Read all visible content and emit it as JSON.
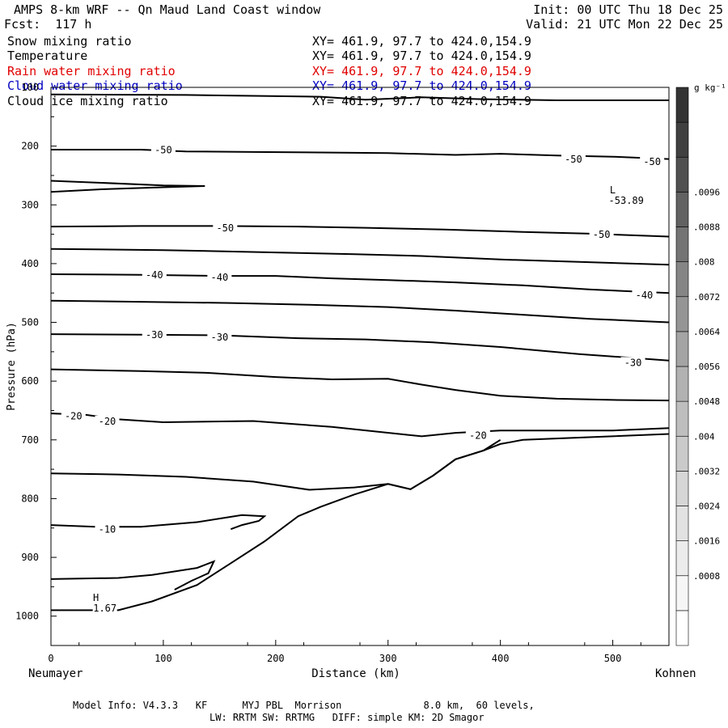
{
  "header": {
    "title": "AMPS 8-km WRF -- Qn Maud Land Coast window",
    "forecast": "Fcst:  117 h",
    "init": "Init: 00 UTC Thu 18 Dec 25",
    "valid": "Valid: 21 UTC Mon 22 Dec 25"
  },
  "fields": [
    {
      "name": "Snow mixing ratio",
      "xy": "XY= 461.9, 97.7 to 424.0,154.9",
      "color": "#000000"
    },
    {
      "name": "Temperature",
      "xy": "XY= 461.9, 97.7 to 424.0,154.9",
      "color": "#000000"
    },
    {
      "name": "Rain water mixing ratio",
      "xy": "XY= 461.9, 97.7 to 424.0,154.9",
      "color": "#e00000"
    },
    {
      "name": "Cloud water mixing ratio",
      "xy": "XY= 461.9, 97.7 to 424.0,154.9",
      "color": "#0000c0"
    },
    {
      "name": "Cloud ice mixing ratio",
      "xy": "XY= 461.9, 97.7 to 424.0,154.9",
      "color": "#000000"
    }
  ],
  "footer": {
    "line1": "Model Info: V4.3.3   KF      MYJ PBL  Morrison              8.0 km,  60 levels,",
    "line2": "LW: RRTM SW: RRTMG   DIFF: simple KM: 2D Smagor"
  },
  "chart_data": {
    "type": "contour",
    "xlabel": "Distance (km)",
    "ylabel": "Pressure (hPa)",
    "xlim": [
      0,
      550
    ],
    "ylim": [
      1050,
      100
    ],
    "x_ticks": [
      0,
      100,
      200,
      300,
      400,
      500
    ],
    "y_ticks": [
      100,
      200,
      300,
      400,
      500,
      600,
      700,
      800,
      900,
      1000
    ],
    "x_endpoint_labels": {
      "left": "Neumayer",
      "right": "Kohnen"
    },
    "colorbar": {
      "unit": "g kg⁻¹",
      "ticks": [
        ".0008",
        ".0016",
        ".0024",
        ".0032",
        ".004",
        ".0048",
        ".0056",
        ".0064",
        ".0072",
        ".008",
        ".0088",
        ".0096"
      ],
      "colors": [
        "#ffffff",
        "#f6f6f6",
        "#ececec",
        "#e2e2e2",
        "#d6d6d6",
        "#cacaca",
        "#bebebe",
        "#b2b2b2",
        "#a4a4a4",
        "#959595",
        "#858585",
        "#747474",
        "#626262",
        "#505050",
        "#404040",
        "#333333"
      ]
    },
    "contour_lines": [
      {
        "points": [
          [
            0,
            112
          ],
          [
            120,
            113
          ],
          [
            240,
            116
          ],
          [
            280,
            121
          ],
          [
            330,
            117
          ],
          [
            380,
            120
          ],
          [
            450,
            122
          ],
          [
            550,
            122
          ]
        ]
      },
      {
        "label": "-50",
        "points": [
          [
            0,
            206
          ],
          [
            80,
            206
          ],
          [
            120,
            209
          ],
          [
            180,
            210
          ],
          [
            250,
            211
          ],
          [
            300,
            212
          ],
          [
            360,
            215
          ],
          [
            400,
            213
          ],
          [
            450,
            216
          ],
          [
            500,
            218
          ],
          [
            550,
            222
          ]
        ]
      },
      {
        "points": [
          [
            0,
            259
          ],
          [
            40,
            262
          ],
          [
            100,
            267
          ],
          [
            137,
            268
          ],
          [
            100,
            270
          ],
          [
            50,
            273
          ],
          [
            0,
            278
          ]
        ]
      },
      {
        "label": "-50",
        "points": [
          [
            0,
            337
          ],
          [
            80,
            336
          ],
          [
            150,
            336
          ],
          [
            220,
            337
          ],
          [
            280,
            339
          ],
          [
            350,
            342
          ],
          [
            420,
            346
          ],
          [
            480,
            349
          ],
          [
            550,
            354
          ]
        ]
      },
      {
        "points": [
          [
            0,
            375
          ],
          [
            100,
            377
          ],
          [
            200,
            381
          ],
          [
            270,
            384
          ],
          [
            330,
            387
          ],
          [
            400,
            393
          ],
          [
            470,
            397
          ],
          [
            550,
            402
          ]
        ]
      },
      {
        "label": "-40",
        "points": [
          [
            0,
            418
          ],
          [
            80,
            419
          ],
          [
            150,
            421
          ],
          [
            200,
            421
          ],
          [
            250,
            425
          ],
          [
            300,
            428
          ],
          [
            360,
            432
          ],
          [
            420,
            437
          ],
          [
            480,
            444
          ],
          [
            550,
            450
          ]
        ]
      },
      {
        "points": [
          [
            0,
            463
          ],
          [
            80,
            465
          ],
          [
            160,
            467
          ],
          [
            230,
            470
          ],
          [
            300,
            474
          ],
          [
            360,
            480
          ],
          [
            420,
            487
          ],
          [
            480,
            494
          ],
          [
            550,
            500
          ]
        ]
      },
      {
        "label": "-30",
        "points": [
          [
            0,
            520
          ],
          [
            80,
            521
          ],
          [
            150,
            522
          ],
          [
            220,
            527
          ],
          [
            280,
            529
          ],
          [
            340,
            534
          ],
          [
            400,
            542
          ],
          [
            470,
            554
          ],
          [
            550,
            565
          ]
        ]
      },
      {
        "points": [
          [
            0,
            580
          ],
          [
            80,
            583
          ],
          [
            140,
            586
          ],
          [
            200,
            593
          ],
          [
            250,
            597
          ],
          [
            300,
            596
          ],
          [
            330,
            606
          ],
          [
            360,
            615
          ],
          [
            400,
            625
          ],
          [
            450,
            630
          ],
          [
            500,
            632
          ],
          [
            550,
            633
          ]
        ]
      },
      {
        "label": "-20",
        "points": [
          [
            0,
            655
          ],
          [
            30,
            657
          ],
          [
            60,
            665
          ],
          [
            100,
            670
          ],
          [
            180,
            668
          ],
          [
            250,
            678
          ],
          [
            310,
            690
          ],
          [
            330,
            694
          ],
          [
            360,
            688
          ],
          [
            400,
            684
          ],
          [
            450,
            684
          ],
          [
            500,
            684
          ],
          [
            550,
            680
          ]
        ]
      },
      {
        "points": [
          [
            0,
            757
          ],
          [
            60,
            759
          ],
          [
            120,
            763
          ],
          [
            180,
            771
          ],
          [
            230,
            785
          ],
          [
            270,
            781
          ],
          [
            300,
            775
          ],
          [
            320,
            784
          ],
          [
            340,
            761
          ],
          [
            360,
            733
          ],
          [
            385,
            718
          ],
          [
            400,
            700
          ]
        ]
      },
      {
        "label": "-10",
        "points": [
          [
            0,
            845
          ],
          [
            40,
            848
          ],
          [
            80,
            848
          ],
          [
            130,
            840
          ],
          [
            170,
            828
          ],
          [
            190,
            830
          ],
          [
            185,
            838
          ],
          [
            170,
            845
          ],
          [
            160,
            852
          ]
        ]
      },
      {
        "points": [
          [
            0,
            937
          ],
          [
            60,
            935
          ],
          [
            90,
            930
          ],
          [
            130,
            918
          ],
          [
            145,
            907
          ],
          [
            140,
            927
          ],
          [
            125,
            940
          ],
          [
            110,
            955
          ]
        ]
      },
      {
        "points": [
          [
            0,
            990
          ],
          [
            60,
            990
          ],
          [
            90,
            975
          ],
          [
            130,
            947
          ],
          [
            160,
            910
          ],
          [
            190,
            873
          ],
          [
            220,
            830
          ],
          [
            240,
            814
          ],
          [
            270,
            793
          ],
          [
            300,
            775
          ],
          [
            320,
            784
          ],
          [
            340,
            761
          ],
          [
            360,
            733
          ],
          [
            385,
            718
          ],
          [
            400,
            707
          ],
          [
            420,
            700
          ],
          [
            550,
            690
          ]
        ]
      }
    ],
    "annotations": [
      {
        "text": "H",
        "x": 40,
        "p": 970
      },
      {
        "text": "1.67",
        "x": 48,
        "p": 988
      },
      {
        "text": "L",
        "x": 500,
        "p": 276
      },
      {
        "text": "-53.89",
        "x": 512,
        "p": 294
      },
      {
        "text": "-50",
        "x": 100,
        "p": 208
      },
      {
        "text": "-50",
        "x": 465,
        "p": 224
      },
      {
        "text": "-50",
        "x": 535,
        "p": 228
      },
      {
        "text": "-50",
        "x": 155,
        "p": 341
      },
      {
        "text": "-50",
        "x": 490,
        "p": 352
      },
      {
        "text": "-40",
        "x": 92,
        "p": 421
      },
      {
        "text": "-40",
        "x": 150,
        "p": 425
      },
      {
        "text": "-40",
        "x": 528,
        "p": 455
      },
      {
        "text": "-30",
        "x": 92,
        "p": 523
      },
      {
        "text": "-30",
        "x": 150,
        "p": 527
      },
      {
        "text": "-30",
        "x": 518,
        "p": 570
      },
      {
        "text": "-20",
        "x": 20,
        "p": 661
      },
      {
        "text": "-20",
        "x": 50,
        "p": 670
      },
      {
        "text": "-20",
        "x": 380,
        "p": 694
      },
      {
        "text": "-10",
        "x": 50,
        "p": 854
      }
    ]
  }
}
